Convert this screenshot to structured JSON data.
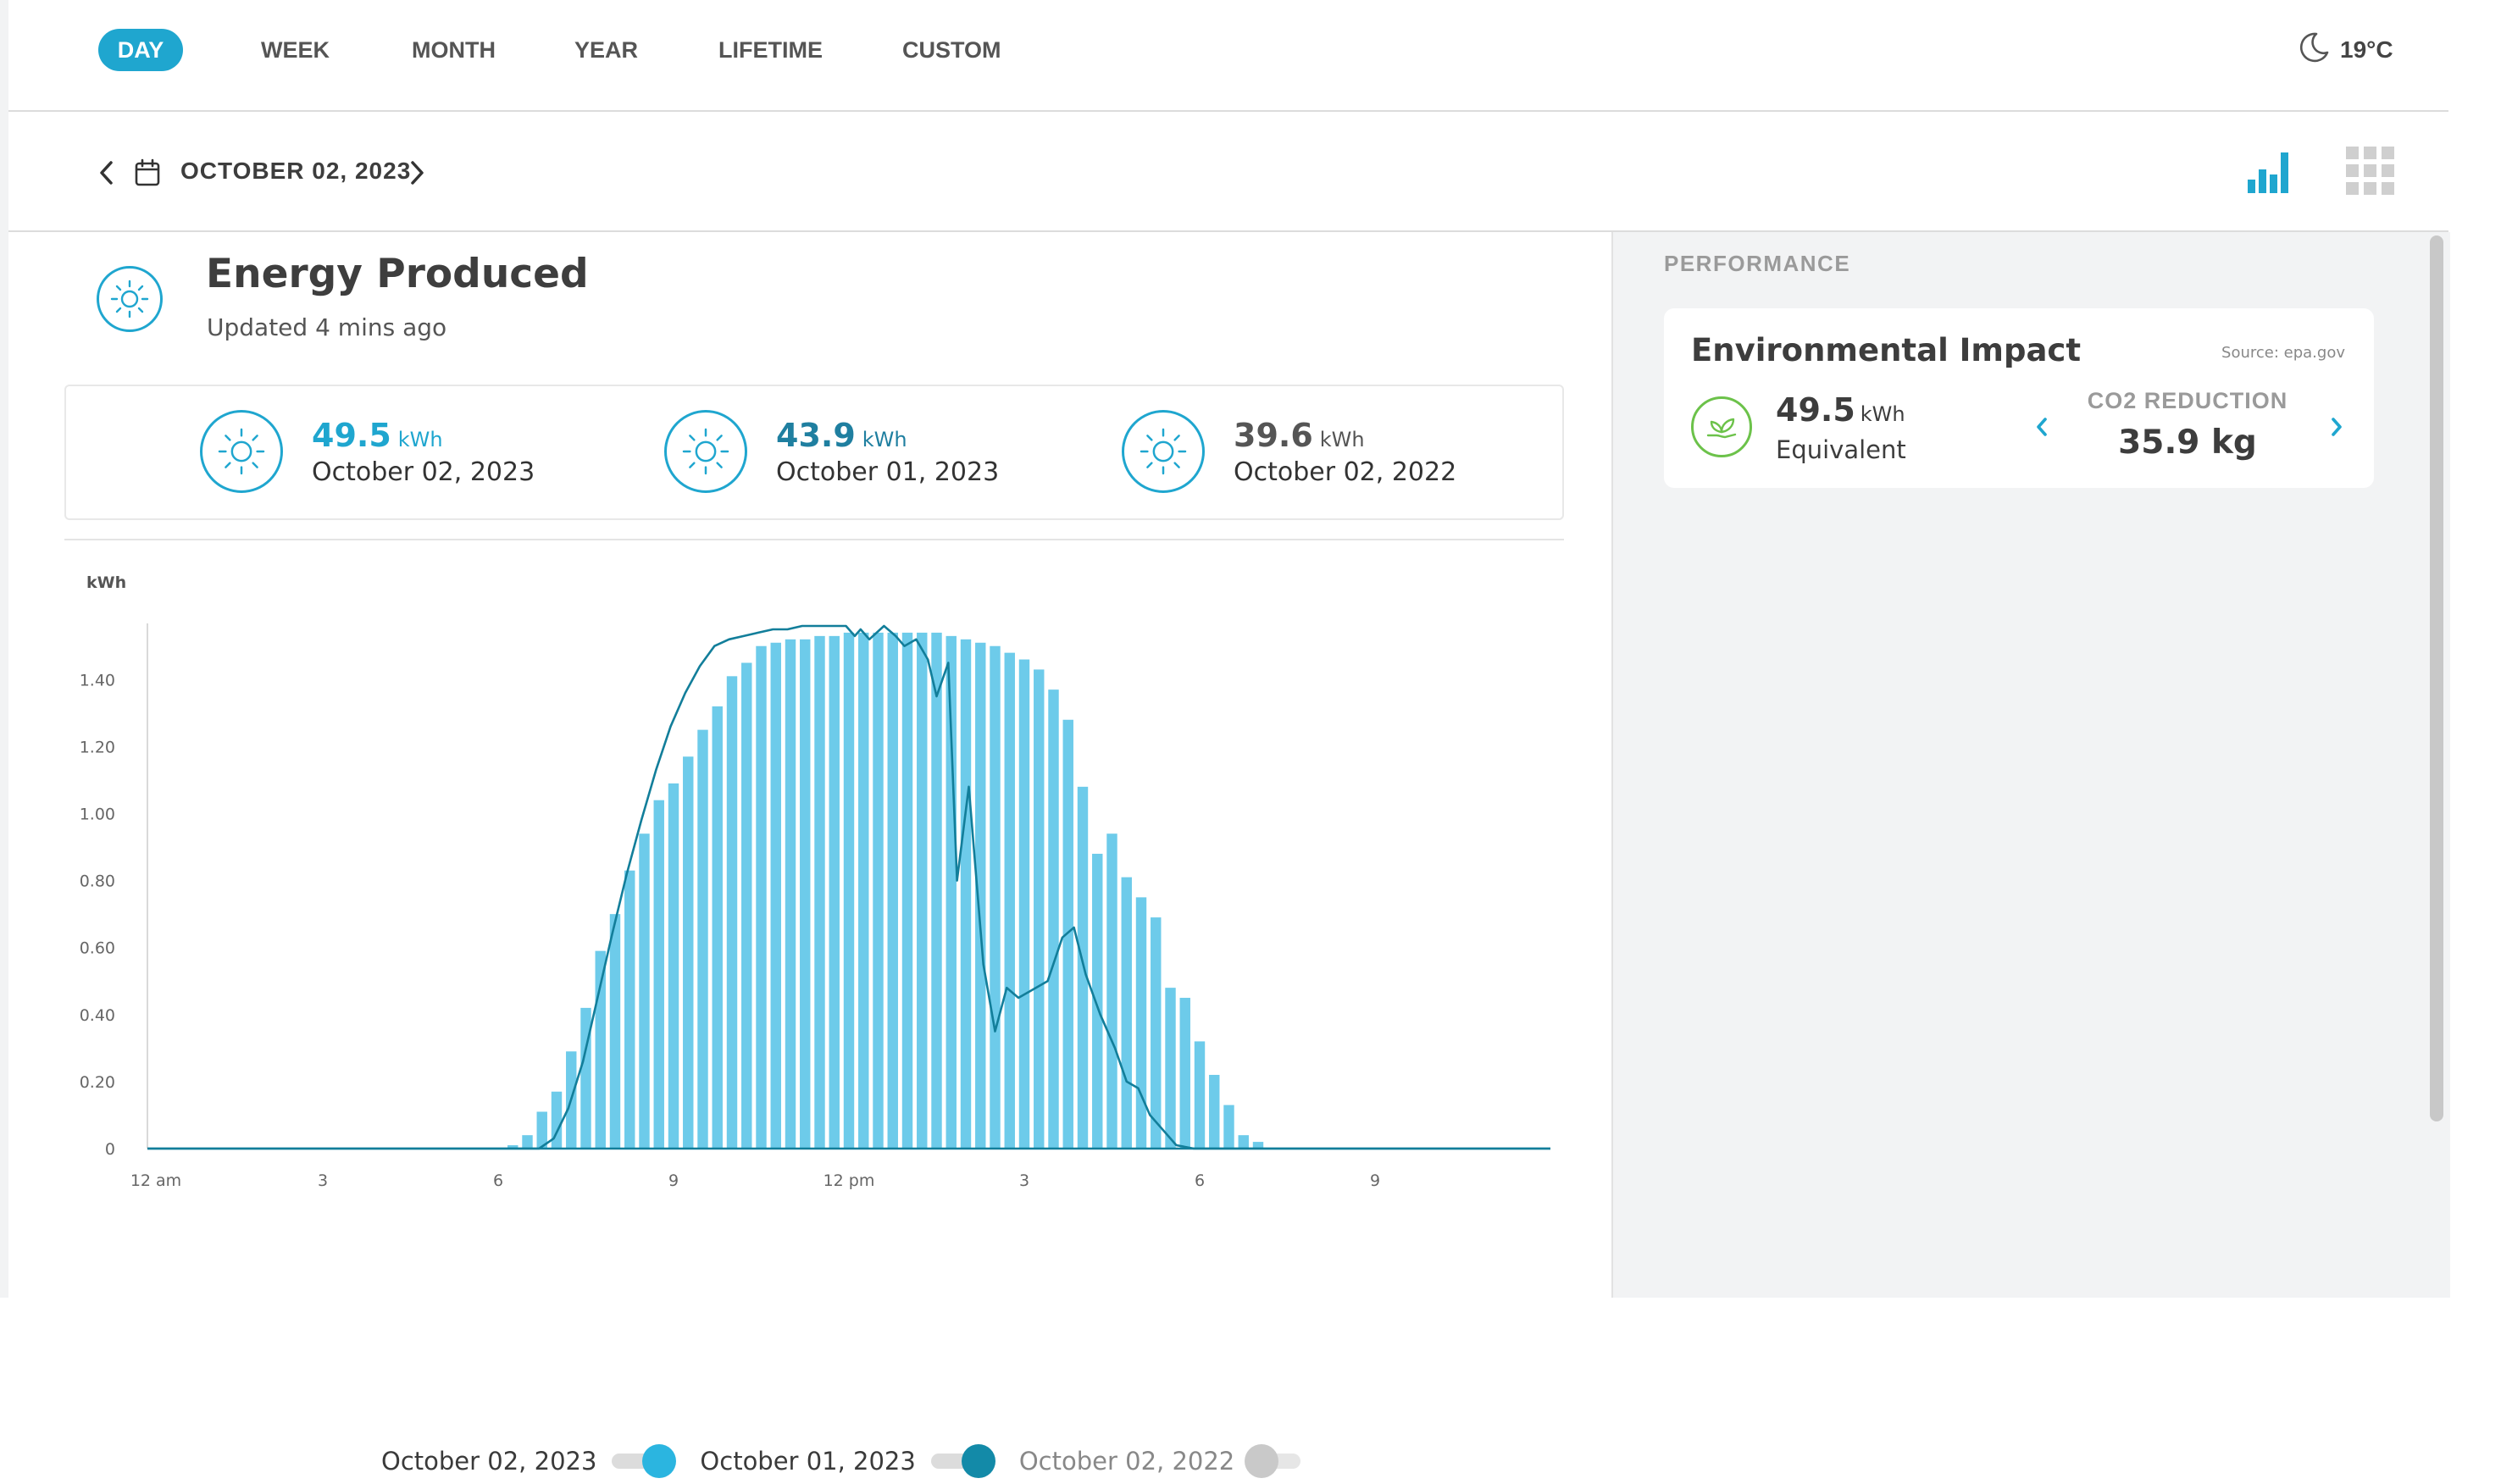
{
  "tabs": [
    {
      "label": "DAY",
      "active": true
    },
    {
      "label": "WEEK",
      "active": false
    },
    {
      "label": "MONTH",
      "active": false
    },
    {
      "label": "YEAR",
      "active": false
    },
    {
      "label": "LIFETIME",
      "active": false
    },
    {
      "label": "CUSTOM",
      "active": false
    }
  ],
  "weather": {
    "temperature": "19°C",
    "icon": "moon-icon"
  },
  "date_nav": {
    "date": "OCTOBER 02, 2023"
  },
  "view_toggle": {
    "chart_icon": "bar-chart-icon",
    "grid_icon": "grid-icon"
  },
  "energy": {
    "title": "Energy Produced",
    "updated": "Updated 4 mins ago",
    "summaries": [
      {
        "value": "49.5",
        "unit": "kWh",
        "date": "October 02, 2023",
        "color": "#1fa6cf"
      },
      {
        "value": "43.9",
        "unit": "kWh",
        "date": "October 01, 2023",
        "color": "#1f7fa0"
      },
      {
        "value": "39.6",
        "unit": "kWh",
        "date": "October 02, 2022",
        "color": "#555555"
      }
    ]
  },
  "chart_data": {
    "type": "bar",
    "ylabel": "kWh",
    "ylim": [
      0,
      1.56
    ],
    "yticks": [
      "0",
      "0.20",
      "0.40",
      "0.60",
      "0.80",
      "1.00",
      "1.20",
      "1.40"
    ],
    "xticks": [
      "12 am",
      "3",
      "6",
      "9",
      "12 pm",
      "3",
      "6",
      "9"
    ],
    "x_hours_start": 0,
    "x_hours_end": 24,
    "interval_minutes": 15,
    "series": [
      {
        "name": "October 02, 2023",
        "kind": "bar",
        "color": "#6dcbea",
        "start_hour": 6.25,
        "values": [
          0.01,
          0.04,
          0.11,
          0.17,
          0.29,
          0.42,
          0.59,
          0.7,
          0.83,
          0.94,
          1.04,
          1.09,
          1.17,
          1.25,
          1.32,
          1.41,
          1.45,
          1.5,
          1.51,
          1.52,
          1.52,
          1.53,
          1.53,
          1.54,
          1.54,
          1.54,
          1.54,
          1.54,
          1.54,
          1.54,
          1.53,
          1.52,
          1.51,
          1.5,
          1.48,
          1.46,
          1.43,
          1.37,
          1.28,
          1.08,
          0.88,
          0.94,
          0.81,
          0.75,
          0.69,
          0.48,
          0.45,
          0.32,
          0.22,
          0.13,
          0.04,
          0.02
        ]
      },
      {
        "name": "October 01, 2023",
        "kind": "line",
        "color": "#127e9a",
        "points": [
          [
            0,
            0
          ],
          [
            6.7,
            0
          ],
          [
            6.95,
            0.03
          ],
          [
            7.2,
            0.12
          ],
          [
            7.45,
            0.26
          ],
          [
            7.7,
            0.45
          ],
          [
            7.95,
            0.64
          ],
          [
            8.2,
            0.82
          ],
          [
            8.45,
            0.98
          ],
          [
            8.7,
            1.13
          ],
          [
            8.95,
            1.26
          ],
          [
            9.2,
            1.36
          ],
          [
            9.45,
            1.44
          ],
          [
            9.7,
            1.5
          ],
          [
            9.95,
            1.52
          ],
          [
            10.2,
            1.53
          ],
          [
            10.45,
            1.54
          ],
          [
            10.7,
            1.55
          ],
          [
            10.95,
            1.55
          ],
          [
            11.2,
            1.56
          ],
          [
            11.45,
            1.56
          ],
          [
            11.7,
            1.56
          ],
          [
            11.95,
            1.56
          ],
          [
            12.1,
            1.53
          ],
          [
            12.2,
            1.55
          ],
          [
            12.35,
            1.52
          ],
          [
            12.6,
            1.56
          ],
          [
            12.8,
            1.53
          ],
          [
            12.95,
            1.5
          ],
          [
            13.15,
            1.52
          ],
          [
            13.35,
            1.46
          ],
          [
            13.5,
            1.35
          ],
          [
            13.7,
            1.45
          ],
          [
            13.85,
            0.8
          ],
          [
            14.05,
            1.08
          ],
          [
            14.3,
            0.55
          ],
          [
            14.5,
            0.35
          ],
          [
            14.7,
            0.48
          ],
          [
            14.9,
            0.45
          ],
          [
            15.1,
            0.47
          ],
          [
            15.4,
            0.5
          ],
          [
            15.65,
            0.63
          ],
          [
            15.85,
            0.66
          ],
          [
            16.05,
            0.52
          ],
          [
            16.3,
            0.4
          ],
          [
            16.55,
            0.3
          ],
          [
            16.75,
            0.2
          ],
          [
            16.95,
            0.18
          ],
          [
            17.15,
            0.1
          ],
          [
            17.4,
            0.05
          ],
          [
            17.6,
            0.01
          ],
          [
            17.9,
            0
          ],
          [
            24,
            0
          ]
        ]
      },
      {
        "name": "October 02, 2022",
        "kind": "hidden",
        "color": "#c9c9c9"
      }
    ]
  },
  "legend": [
    {
      "label": "October 02, 2023",
      "color": "#2bb5e0",
      "on": true
    },
    {
      "label": "October 01, 2023",
      "color": "#138aa8",
      "on": true
    },
    {
      "label": "October 02, 2022",
      "color": "#c9c9c9",
      "on": false
    }
  ],
  "performance": {
    "heading": "PERFORMANCE",
    "card_title": "Environmental Impact",
    "source": "Source: epa.gov",
    "value": "49.5",
    "unit": "kWh",
    "equivalent": "Equivalent",
    "metric_label": "CO2 REDUCTION",
    "metric_value": "35.9 kg",
    "icon": "leaf-hand-icon"
  }
}
